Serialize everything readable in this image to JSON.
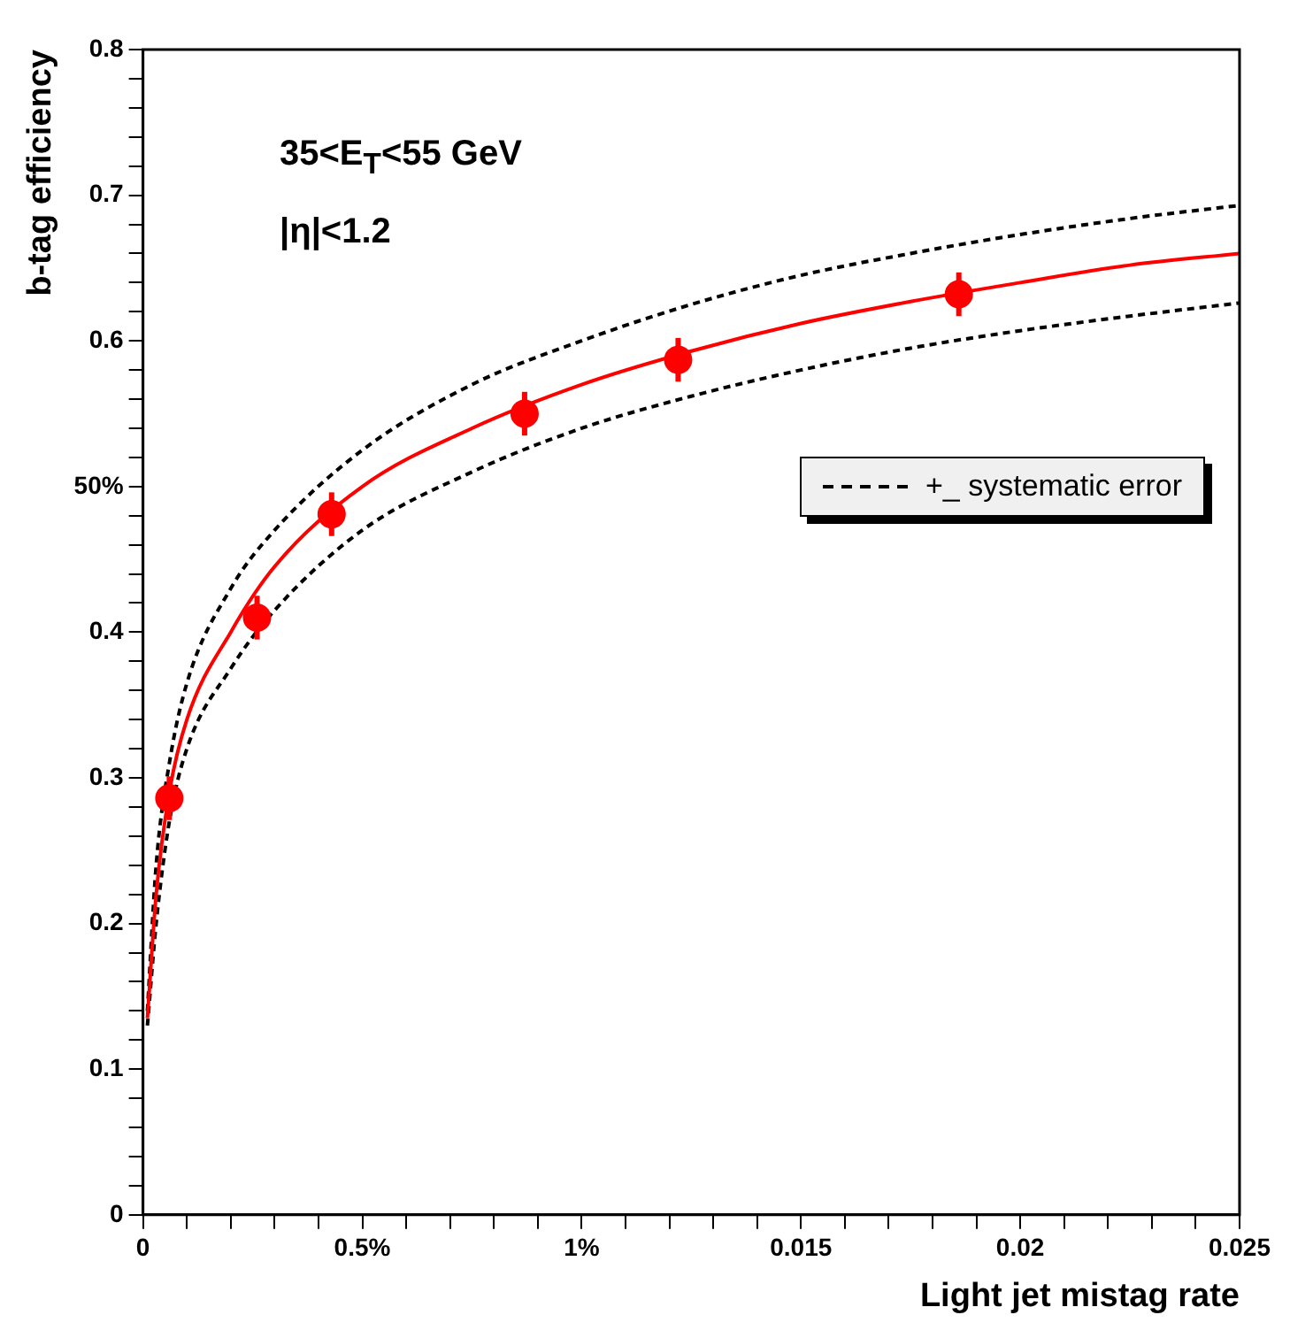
{
  "chart_data": {
    "type": "scatter",
    "xlabel": "Light jet mistag rate",
    "ylabel": "b-tag efficiency",
    "annotations": [
      "35<E$_{T}$<55 GeV",
      "|η|<1.2"
    ],
    "xlim": [
      0,
      0.025
    ],
    "ylim": [
      0,
      0.8
    ],
    "xticks": [
      0,
      {
        "value": 0.001,
        "label": null
      },
      {
        "value": 0.002,
        "label": null
      },
      {
        "value": 0.003,
        "label": null
      },
      {
        "value": 0.004,
        "label": null
      },
      {
        "value": 0.005,
        "label": "0.5%"
      },
      {
        "value": 0.006,
        "label": null
      },
      {
        "value": 0.007,
        "label": null
      },
      {
        "value": 0.008,
        "label": null
      },
      {
        "value": 0.009,
        "label": null
      },
      {
        "value": 0.01,
        "label": "1%"
      },
      {
        "value": 0.011,
        "label": null
      },
      {
        "value": 0.012,
        "label": null
      },
      {
        "value": 0.013,
        "label": null
      },
      {
        "value": 0.014,
        "label": null
      },
      0.015,
      {
        "value": 0.016,
        "label": null
      },
      {
        "value": 0.017,
        "label": null
      },
      {
        "value": 0.018,
        "label": null
      },
      {
        "value": 0.019,
        "label": null
      },
      0.02,
      {
        "value": 0.021,
        "label": null
      },
      {
        "value": 0.022,
        "label": null
      },
      {
        "value": 0.023,
        "label": null
      },
      {
        "value": 0.024,
        "label": null
      },
      0.025
    ],
    "yticks": [
      0,
      {
        "value": 0.02,
        "label": null
      },
      {
        "value": 0.04,
        "label": null
      },
      {
        "value": 0.06,
        "label": null
      },
      {
        "value": 0.08,
        "label": null
      },
      0.1,
      {
        "value": 0.12,
        "label": null
      },
      {
        "value": 0.14,
        "label": null
      },
      {
        "value": 0.16,
        "label": null
      },
      {
        "value": 0.18,
        "label": null
      },
      0.2,
      {
        "value": 0.22,
        "label": null
      },
      {
        "value": 0.24,
        "label": null
      },
      {
        "value": 0.26,
        "label": null
      },
      {
        "value": 0.28,
        "label": null
      },
      0.3,
      {
        "value": 0.32,
        "label": null
      },
      {
        "value": 0.34,
        "label": null
      },
      {
        "value": 0.36,
        "label": null
      },
      {
        "value": 0.38,
        "label": null
      },
      0.4,
      {
        "value": 0.42,
        "label": null
      },
      {
        "value": 0.44,
        "label": null
      },
      {
        "value": 0.46,
        "label": null
      },
      {
        "value": 0.48,
        "label": null
      },
      {
        "value": 0.5,
        "label": "50%"
      },
      {
        "value": 0.52,
        "label": null
      },
      {
        "value": 0.54,
        "label": null
      },
      {
        "value": 0.56,
        "label": null
      },
      {
        "value": 0.58,
        "label": null
      },
      0.6,
      {
        "value": 0.62,
        "label": null
      },
      {
        "value": 0.64,
        "label": null
      },
      {
        "value": 0.66,
        "label": null
      },
      {
        "value": 0.68,
        "label": null
      },
      0.7,
      {
        "value": 0.72,
        "label": null
      },
      {
        "value": 0.74,
        "label": null
      },
      {
        "value": 0.76,
        "label": null
      },
      {
        "value": 0.78,
        "label": null
      },
      0.8
    ],
    "grid": false,
    "legend": "right",
    "series": [
      {
        "type": "scatter",
        "color": "#ff0000",
        "marker": "circle",
        "x": [
          0.0006,
          0.0026,
          0.0043,
          0.0087,
          0.0122,
          0.0186
        ],
        "values": [
          0.286,
          0.41,
          0.481,
          0.55,
          0.587,
          0.632
        ],
        "errors": [
          0.015,
          0.015,
          0.015,
          0.015,
          0.015,
          0.015
        ],
        "xerrors": [
          0.0003,
          0.0003,
          0.0003,
          0.0003,
          0.0003,
          0.0003
        ]
      },
      {
        "type": "line",
        "color": "#ff0000",
        "marker": "none",
        "line_style": "solid",
        "x": [
          0.0001,
          0.0003,
          0.0006,
          0.001,
          0.002,
          0.003,
          0.005,
          0.0075,
          0.01,
          0.0125,
          0.015,
          0.0175,
          0.02,
          0.0225,
          0.025
        ],
        "values": [
          0.135,
          0.22,
          0.29,
          0.34,
          0.4,
          0.445,
          0.5,
          0.54,
          0.57,
          0.593,
          0.612,
          0.627,
          0.64,
          0.652,
          0.66
        ]
      },
      {
        "type": "line",
        "name": "+_ systematic error",
        "color": "#000000",
        "marker": "none",
        "line_style": "dashed",
        "x": [
          0.0001,
          0.0003,
          0.0006,
          0.001,
          0.002,
          0.003,
          0.005,
          0.0075,
          0.01,
          0.0125,
          0.015,
          0.0175,
          0.02,
          0.0225,
          0.025
        ],
        "values": [
          0.14,
          0.24,
          0.31,
          0.365,
          0.43,
          0.47,
          0.525,
          0.57,
          0.6,
          0.625,
          0.645,
          0.66,
          0.673,
          0.684,
          0.693
        ]
      },
      {
        "type": "line",
        "color": "#000000",
        "marker": "none",
        "line_style": "dashed",
        "x": [
          0.0001,
          0.0003,
          0.0006,
          0.001,
          0.002,
          0.003,
          0.005,
          0.0075,
          0.01,
          0.0125,
          0.015,
          0.0175,
          0.02,
          0.0225,
          0.025
        ],
        "values": [
          0.13,
          0.2,
          0.27,
          0.32,
          0.375,
          0.415,
          0.47,
          0.51,
          0.54,
          0.562,
          0.58,
          0.595,
          0.607,
          0.617,
          0.626
        ]
      }
    ]
  }
}
